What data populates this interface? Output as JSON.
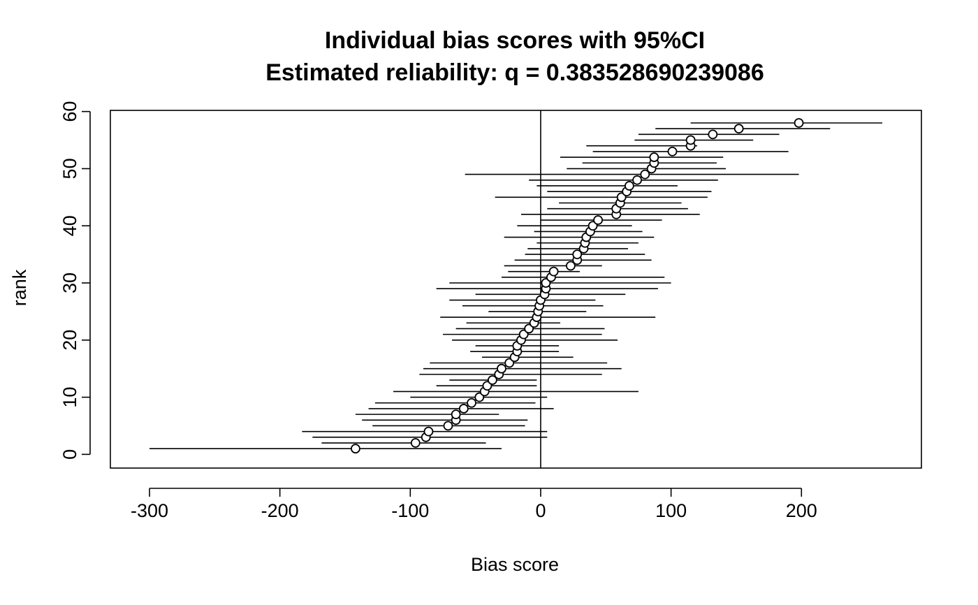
{
  "chart_data": {
    "type": "scatter",
    "title": "Individual bias scores with 95%CI",
    "subtitle": "Estimated reliability: q = 0.383528690239086",
    "xlabel": "Bias score",
    "ylabel": "rank",
    "xlim": [
      -330,
      292
    ],
    "ylim": [
      -2.4,
      60.2
    ],
    "x_ticks": [
      -300,
      -200,
      -100,
      0,
      100,
      200
    ],
    "y_ticks": [
      0,
      10,
      20,
      30,
      40,
      50,
      60
    ],
    "x_tick_labels": [
      "-300",
      "-200",
      "-100",
      "0",
      "100",
      "200"
    ],
    "y_tick_labels": [
      "0",
      "10",
      "20",
      "30",
      "40",
      "50",
      "60"
    ],
    "reference_line_x": 0,
    "grid": false,
    "points": [
      {
        "rank": 1,
        "x": -142,
        "lo": -300,
        "hi": -30
      },
      {
        "rank": 2,
        "x": -96,
        "lo": -168,
        "hi": -42
      },
      {
        "rank": 3,
        "x": -88,
        "lo": -175,
        "hi": 5
      },
      {
        "rank": 4,
        "x": -86,
        "lo": -183,
        "hi": 5
      },
      {
        "rank": 5,
        "x": -71,
        "lo": -129,
        "hi": -12
      },
      {
        "rank": 6,
        "x": -65,
        "lo": -137,
        "hi": -10
      },
      {
        "rank": 7,
        "x": -65,
        "lo": -142,
        "hi": -32
      },
      {
        "rank": 8,
        "x": -59,
        "lo": -132,
        "hi": 10
      },
      {
        "rank": 9,
        "x": -53,
        "lo": -127,
        "hi": -4
      },
      {
        "rank": 10,
        "x": -47,
        "lo": -100,
        "hi": 5
      },
      {
        "rank": 11,
        "x": -43,
        "lo": -113,
        "hi": 75
      },
      {
        "rank": 12,
        "x": -41,
        "lo": -80,
        "hi": -3
      },
      {
        "rank": 13,
        "x": -37,
        "lo": -70,
        "hi": -3
      },
      {
        "rank": 14,
        "x": -32,
        "lo": -93,
        "hi": 47
      },
      {
        "rank": 15,
        "x": -30,
        "lo": -90,
        "hi": 62
      },
      {
        "rank": 16,
        "x": -24,
        "lo": -85,
        "hi": 51
      },
      {
        "rank": 17,
        "x": -20,
        "lo": -45,
        "hi": 25
      },
      {
        "rank": 18,
        "x": -18,
        "lo": -54,
        "hi": 14
      },
      {
        "rank": 19,
        "x": -18,
        "lo": -50,
        "hi": 14
      },
      {
        "rank": 20,
        "x": -15,
        "lo": -68,
        "hi": 59
      },
      {
        "rank": 21,
        "x": -13,
        "lo": -75,
        "hi": 47
      },
      {
        "rank": 22,
        "x": -9,
        "lo": -65,
        "hi": 49
      },
      {
        "rank": 23,
        "x": -5,
        "lo": -57,
        "hi": 15
      },
      {
        "rank": 24,
        "x": -3,
        "lo": -77,
        "hi": 88
      },
      {
        "rank": 25,
        "x": -2,
        "lo": -40,
        "hi": 35
      },
      {
        "rank": 26,
        "x": -1,
        "lo": -60,
        "hi": 48
      },
      {
        "rank": 27,
        "x": 0,
        "lo": -70,
        "hi": 42
      },
      {
        "rank": 28,
        "x": 3,
        "lo": -50,
        "hi": 65
      },
      {
        "rank": 29,
        "x": 4,
        "lo": -80,
        "hi": 90
      },
      {
        "rank": 30,
        "x": 4,
        "lo": -70,
        "hi": 100
      },
      {
        "rank": 31,
        "x": 8,
        "lo": -30,
        "hi": 95
      },
      {
        "rank": 32,
        "x": 10,
        "lo": -25,
        "hi": 30
      },
      {
        "rank": 33,
        "x": 23,
        "lo": -28,
        "hi": 47
      },
      {
        "rank": 34,
        "x": 28,
        "lo": -20,
        "hi": 85
      },
      {
        "rank": 35,
        "x": 28,
        "lo": -12,
        "hi": 80
      },
      {
        "rank": 36,
        "x": 33,
        "lo": -10,
        "hi": 67
      },
      {
        "rank": 37,
        "x": 34,
        "lo": -3,
        "hi": 75
      },
      {
        "rank": 38,
        "x": 35,
        "lo": -28,
        "hi": 87
      },
      {
        "rank": 39,
        "x": 38,
        "lo": -5,
        "hi": 78
      },
      {
        "rank": 40,
        "x": 40,
        "lo": -18,
        "hi": 70
      },
      {
        "rank": 41,
        "x": 44,
        "lo": 0,
        "hi": 93
      },
      {
        "rank": 42,
        "x": 58,
        "lo": -15,
        "hi": 122
      },
      {
        "rank": 43,
        "x": 58,
        "lo": 5,
        "hi": 113
      },
      {
        "rank": 44,
        "x": 61,
        "lo": 14,
        "hi": 108
      },
      {
        "rank": 45,
        "x": 62,
        "lo": -35,
        "hi": 128
      },
      {
        "rank": 46,
        "x": 66,
        "lo": 5,
        "hi": 131
      },
      {
        "rank": 47,
        "x": 68,
        "lo": -3,
        "hi": 105
      },
      {
        "rank": 48,
        "x": 74,
        "lo": -9,
        "hi": 136
      },
      {
        "rank": 49,
        "x": 80,
        "lo": -58,
        "hi": 198
      },
      {
        "rank": 50,
        "x": 85,
        "lo": 20,
        "hi": 142
      },
      {
        "rank": 51,
        "x": 87,
        "lo": 32,
        "hi": 135
      },
      {
        "rank": 52,
        "x": 87,
        "lo": 15,
        "hi": 140
      },
      {
        "rank": 53,
        "x": 101,
        "lo": 40,
        "hi": 190
      },
      {
        "rank": 54,
        "x": 115,
        "lo": 35,
        "hi": 120
      },
      {
        "rank": 55,
        "x": 115,
        "lo": 72,
        "hi": 163
      },
      {
        "rank": 56,
        "x": 132,
        "lo": 75,
        "hi": 183
      },
      {
        "rank": 57,
        "x": 152,
        "lo": 88,
        "hi": 222
      },
      {
        "rank": 58,
        "x": 198,
        "lo": 115,
        "hi": 262
      }
    ]
  }
}
